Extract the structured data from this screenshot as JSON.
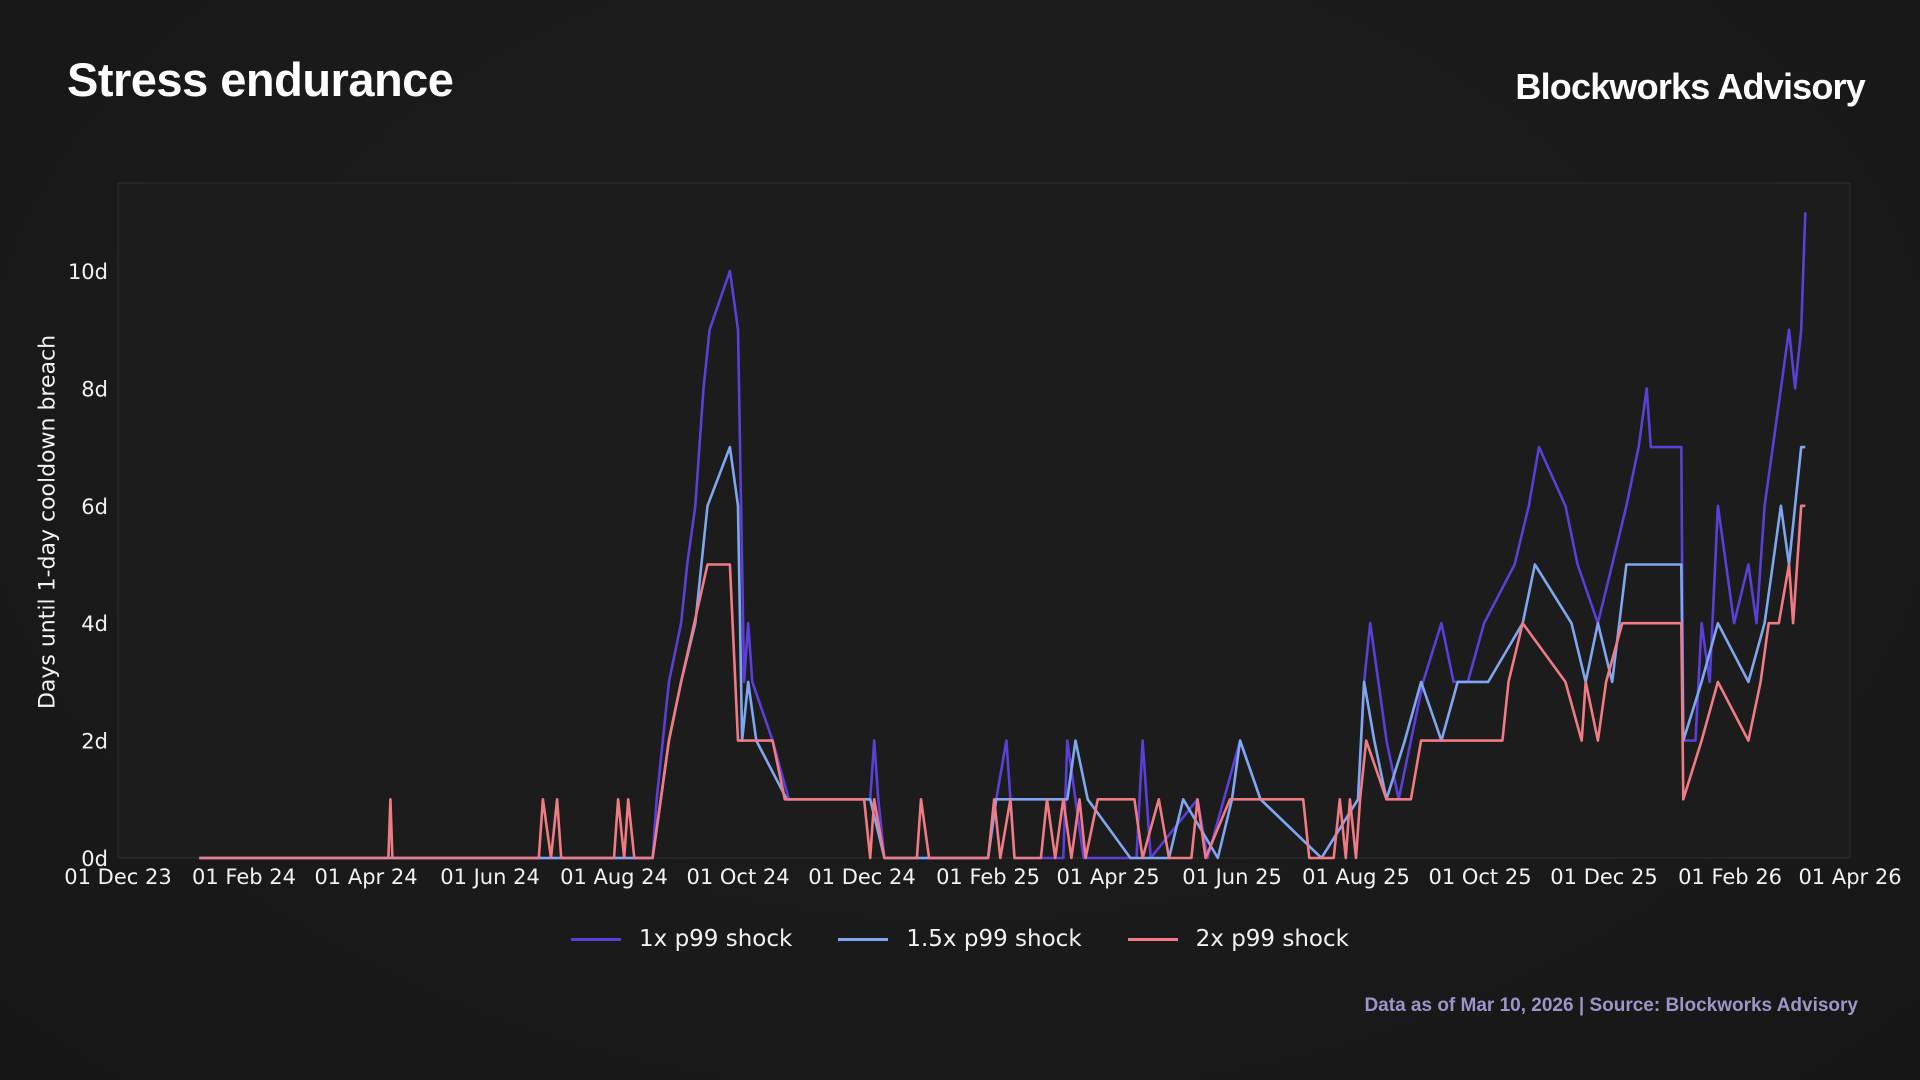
{
  "header": {
    "title": "Stress endurance",
    "brand": "Blockworks Advisory"
  },
  "footnote": "Data as of Mar 10, 2026 | Source: Blockworks Advisory",
  "chart_data": {
    "type": "line",
    "title": "Stress endurance",
    "ylabel": "Days until 1-day cooldown breach",
    "xlabel": "",
    "ylim": [
      0,
      11.5
    ],
    "xlim": [
      "2023-12-01",
      "2026-04-01"
    ],
    "y_ticks": [
      0,
      2,
      4,
      6,
      8,
      10
    ],
    "y_tick_labels": [
      "0d",
      "2d",
      "4d",
      "6d",
      "8d",
      "10d"
    ],
    "x_ticks": [
      "2023-12-01",
      "2024-02-01",
      "2024-04-01",
      "2024-06-01",
      "2024-08-01",
      "2024-10-01",
      "2024-12-01",
      "2025-02-01",
      "2025-04-01",
      "2025-06-01",
      "2025-08-01",
      "2025-10-01",
      "2025-12-01",
      "2026-02-01",
      "2026-04-01"
    ],
    "x_tick_labels": [
      "01 Dec 23",
      "01 Feb 24",
      "01 Apr 24",
      "01 Jun 24",
      "01 Aug 24",
      "01 Oct 24",
      "01 Dec 24",
      "01 Feb 25",
      "01 Apr 25",
      "01 Jun 25",
      "01 Aug 25",
      "01 Oct 25",
      "01 Dec 25",
      "01 Feb 26",
      "01 Apr 26"
    ],
    "grid": false,
    "legend_position": "bottom-center",
    "series": [
      {
        "name": "1x p99 shock",
        "color": "#5b3fd6",
        "points": [
          [
            "2024-01-10",
            0
          ],
          [
            "2024-08-20",
            0
          ],
          [
            "2024-08-22",
            1
          ],
          [
            "2024-08-25",
            2
          ],
          [
            "2024-08-28",
            3
          ],
          [
            "2024-09-03",
            4
          ],
          [
            "2024-09-06",
            5
          ],
          [
            "2024-09-10",
            6
          ],
          [
            "2024-09-14",
            8
          ],
          [
            "2024-09-17",
            9
          ],
          [
            "2024-09-27",
            10
          ],
          [
            "2024-10-01",
            9
          ],
          [
            "2024-10-04",
            3
          ],
          [
            "2024-10-06",
            4
          ],
          [
            "2024-10-08",
            3
          ],
          [
            "2024-10-18",
            2
          ],
          [
            "2024-10-26",
            1
          ],
          [
            "2024-12-05",
            1
          ],
          [
            "2024-12-07",
            2
          ],
          [
            "2024-12-09",
            1
          ],
          [
            "2024-12-12",
            0
          ],
          [
            "2025-02-01",
            0
          ],
          [
            "2025-02-05",
            1
          ],
          [
            "2025-02-10",
            2
          ],
          [
            "2025-02-14",
            0
          ],
          [
            "2025-03-10",
            0
          ],
          [
            "2025-03-12",
            2
          ],
          [
            "2025-03-20",
            0
          ],
          [
            "2025-04-15",
            0
          ],
          [
            "2025-04-18",
            2
          ],
          [
            "2025-04-22",
            0
          ],
          [
            "2025-05-15",
            1
          ],
          [
            "2025-05-20",
            0
          ],
          [
            "2025-06-05",
            2
          ],
          [
            "2025-06-15",
            1
          ],
          [
            "2025-07-15",
            0
          ],
          [
            "2025-08-02",
            1
          ],
          [
            "2025-08-05",
            3
          ],
          [
            "2025-08-08",
            4
          ],
          [
            "2025-08-12",
            3
          ],
          [
            "2025-08-16",
            2
          ],
          [
            "2025-08-22",
            1
          ],
          [
            "2025-08-28",
            2
          ],
          [
            "2025-09-03",
            3
          ],
          [
            "2025-09-12",
            4
          ],
          [
            "2025-09-18",
            3
          ],
          [
            "2025-09-25",
            3
          ],
          [
            "2025-10-03",
            4
          ],
          [
            "2025-10-18",
            5
          ],
          [
            "2025-10-25",
            6
          ],
          [
            "2025-10-30",
            7
          ],
          [
            "2025-11-12",
            6
          ],
          [
            "2025-11-18",
            5
          ],
          [
            "2025-11-28",
            4
          ],
          [
            "2025-12-05",
            5
          ],
          [
            "2025-12-12",
            6
          ],
          [
            "2025-12-18",
            7
          ],
          [
            "2025-12-22",
            8
          ],
          [
            "2025-12-24",
            7
          ],
          [
            "2026-01-08",
            7
          ],
          [
            "2026-01-09",
            2
          ],
          [
            "2026-01-15",
            2
          ],
          [
            "2026-01-18",
            4
          ],
          [
            "2026-01-22",
            3
          ],
          [
            "2026-01-26",
            6
          ],
          [
            "2026-01-30",
            5
          ],
          [
            "2026-02-03",
            4
          ],
          [
            "2026-02-10",
            5
          ],
          [
            "2026-02-14",
            4
          ],
          [
            "2026-02-18",
            6
          ],
          [
            "2026-02-22",
            7
          ],
          [
            "2026-02-26",
            8
          ],
          [
            "2026-03-02",
            9
          ],
          [
            "2026-03-05",
            8
          ],
          [
            "2026-03-08",
            9
          ],
          [
            "2026-03-10",
            11
          ]
        ]
      },
      {
        "name": "1.5x p99 shock",
        "color": "#7fa7ef",
        "points": [
          [
            "2024-01-10",
            0
          ],
          [
            "2024-08-20",
            0
          ],
          [
            "2024-08-24",
            1
          ],
          [
            "2024-08-28",
            2
          ],
          [
            "2024-09-03",
            3
          ],
          [
            "2024-09-10",
            4
          ],
          [
            "2024-09-16",
            6
          ],
          [
            "2024-09-27",
            7
          ],
          [
            "2024-10-01",
            6
          ],
          [
            "2024-10-03",
            2
          ],
          [
            "2024-10-06",
            3
          ],
          [
            "2024-10-10",
            2
          ],
          [
            "2024-10-25",
            1
          ],
          [
            "2024-12-05",
            1
          ],
          [
            "2024-12-12",
            0
          ],
          [
            "2025-02-01",
            0
          ],
          [
            "2025-02-05",
            1
          ],
          [
            "2025-03-12",
            1
          ],
          [
            "2025-03-16",
            2
          ],
          [
            "2025-03-22",
            1
          ],
          [
            "2025-04-12",
            0
          ],
          [
            "2025-05-01",
            0
          ],
          [
            "2025-05-08",
            1
          ],
          [
            "2025-05-25",
            0
          ],
          [
            "2025-06-01",
            1
          ],
          [
            "2025-06-05",
            2
          ],
          [
            "2025-06-15",
            1
          ],
          [
            "2025-07-15",
            0
          ],
          [
            "2025-08-02",
            1
          ],
          [
            "2025-08-05",
            3
          ],
          [
            "2025-08-10",
            2
          ],
          [
            "2025-08-16",
            1
          ],
          [
            "2025-08-25",
            2
          ],
          [
            "2025-09-02",
            3
          ],
          [
            "2025-09-12",
            2
          ],
          [
            "2025-09-20",
            3
          ],
          [
            "2025-10-05",
            3
          ],
          [
            "2025-10-22",
            4
          ],
          [
            "2025-10-28",
            5
          ],
          [
            "2025-11-15",
            4
          ],
          [
            "2025-11-22",
            3
          ],
          [
            "2025-11-28",
            4
          ],
          [
            "2025-12-05",
            3
          ],
          [
            "2025-12-12",
            5
          ],
          [
            "2026-01-08",
            5
          ],
          [
            "2026-01-09",
            2
          ],
          [
            "2026-01-18",
            3
          ],
          [
            "2026-01-26",
            4
          ],
          [
            "2026-02-10",
            3
          ],
          [
            "2026-02-18",
            4
          ],
          [
            "2026-02-22",
            5
          ],
          [
            "2026-02-26",
            6
          ],
          [
            "2026-03-02",
            5
          ],
          [
            "2026-03-05",
            6
          ],
          [
            "2026-03-08",
            7
          ],
          [
            "2026-03-10",
            7
          ]
        ]
      },
      {
        "name": "2x p99 shock",
        "color": "#ef7c84",
        "points": [
          [
            "2024-01-10",
            0
          ],
          [
            "2024-04-12",
            0
          ],
          [
            "2024-04-13",
            1
          ],
          [
            "2024-04-14",
            0
          ],
          [
            "2024-06-25",
            0
          ],
          [
            "2024-06-27",
            1
          ],
          [
            "2024-07-01",
            0
          ],
          [
            "2024-07-04",
            1
          ],
          [
            "2024-07-06",
            0
          ],
          [
            "2024-08-01",
            0
          ],
          [
            "2024-08-03",
            1
          ],
          [
            "2024-08-06",
            0
          ],
          [
            "2024-08-08",
            1
          ],
          [
            "2024-08-11",
            0
          ],
          [
            "2024-08-20",
            0
          ],
          [
            "2024-08-24",
            1
          ],
          [
            "2024-08-28",
            2
          ],
          [
            "2024-09-03",
            3
          ],
          [
            "2024-09-16",
            5
          ],
          [
            "2024-09-27",
            5
          ],
          [
            "2024-10-01",
            2
          ],
          [
            "2024-10-18",
            2
          ],
          [
            "2024-10-24",
            1
          ],
          [
            "2024-12-02",
            1
          ],
          [
            "2024-12-05",
            0
          ],
          [
            "2024-12-07",
            1
          ],
          [
            "2024-12-12",
            0
          ],
          [
            "2024-12-28",
            0
          ],
          [
            "2024-12-30",
            1
          ],
          [
            "2025-01-03",
            0
          ],
          [
            "2025-02-01",
            0
          ],
          [
            "2025-02-04",
            1
          ],
          [
            "2025-02-07",
            0
          ],
          [
            "2025-02-12",
            1
          ],
          [
            "2025-02-14",
            0
          ],
          [
            "2025-02-27",
            0
          ],
          [
            "2025-03-02",
            1
          ],
          [
            "2025-03-06",
            0
          ],
          [
            "2025-03-10",
            1
          ],
          [
            "2025-03-14",
            0
          ],
          [
            "2025-03-18",
            1
          ],
          [
            "2025-03-21",
            0
          ],
          [
            "2025-03-27",
            1
          ],
          [
            "2025-04-14",
            1
          ],
          [
            "2025-04-18",
            0
          ],
          [
            "2025-04-26",
            1
          ],
          [
            "2025-05-01",
            0
          ],
          [
            "2025-05-12",
            0
          ],
          [
            "2025-05-15",
            1
          ],
          [
            "2025-05-19",
            0
          ],
          [
            "2025-05-31",
            1
          ],
          [
            "2025-07-06",
            1
          ],
          [
            "2025-07-09",
            0
          ],
          [
            "2025-07-21",
            0
          ],
          [
            "2025-07-24",
            1
          ],
          [
            "2025-07-27",
            0
          ],
          [
            "2025-07-29",
            1
          ],
          [
            "2025-08-01",
            0
          ],
          [
            "2025-08-03",
            1
          ],
          [
            "2025-08-06",
            2
          ],
          [
            "2025-08-16",
            1
          ],
          [
            "2025-08-28",
            1
          ],
          [
            "2025-09-02",
            2
          ],
          [
            "2025-10-12",
            2
          ],
          [
            "2025-10-15",
            3
          ],
          [
            "2025-10-22",
            4
          ],
          [
            "2025-11-12",
            3
          ],
          [
            "2025-11-20",
            2
          ],
          [
            "2025-11-22",
            3
          ],
          [
            "2025-11-28",
            2
          ],
          [
            "2025-12-02",
            3
          ],
          [
            "2025-12-10",
            4
          ],
          [
            "2026-01-08",
            4
          ],
          [
            "2026-01-09",
            1
          ],
          [
            "2026-01-18",
            2
          ],
          [
            "2026-01-26",
            3
          ],
          [
            "2026-02-10",
            2
          ],
          [
            "2026-02-16",
            3
          ],
          [
            "2026-02-20",
            4
          ],
          [
            "2026-02-25",
            4
          ],
          [
            "2026-03-02",
            5
          ],
          [
            "2026-03-04",
            4
          ],
          [
            "2026-03-08",
            6
          ],
          [
            "2026-03-10",
            6
          ]
        ]
      }
    ]
  }
}
